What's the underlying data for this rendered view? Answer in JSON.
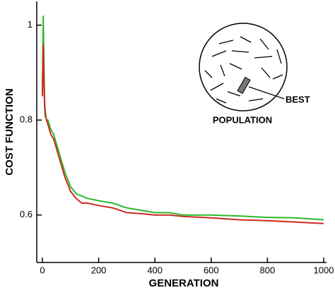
{
  "chart_data": {
    "type": "line",
    "x_label": "GENERATION",
    "y_label": "COST FUNCTION",
    "x": [
      0,
      3,
      5,
      8,
      10,
      15,
      20,
      30,
      40,
      50,
      60,
      70,
      80,
      100,
      120,
      140,
      160,
      200,
      250,
      300,
      350,
      400,
      450,
      500,
      600,
      700,
      800,
      900,
      1000
    ],
    "series": [
      {
        "name": "green",
        "color": "#2db82d",
        "values": [
          0.86,
          1.02,
          0.93,
          0.84,
          0.82,
          0.8,
          0.8,
          0.78,
          0.77,
          0.75,
          0.73,
          0.71,
          0.69,
          0.66,
          0.645,
          0.64,
          0.635,
          0.63,
          0.625,
          0.615,
          0.61,
          0.605,
          0.605,
          0.6,
          0.6,
          0.598,
          0.595,
          0.594,
          0.59
        ]
      },
      {
        "name": "red",
        "color": "#cc2a1e",
        "values": [
          0.85,
          0.96,
          0.9,
          0.83,
          0.81,
          0.8,
          0.79,
          0.77,
          0.76,
          0.74,
          0.72,
          0.7,
          0.68,
          0.65,
          0.635,
          0.625,
          0.625,
          0.62,
          0.615,
          0.605,
          0.603,
          0.6,
          0.6,
          0.597,
          0.594,
          0.59,
          0.588,
          0.585,
          0.582
        ]
      }
    ],
    "xlim": [
      -20,
      1010
    ],
    "xticks": [
      0,
      200,
      400,
      600,
      800,
      1000
    ],
    "ylim": [
      0.5,
      1.05
    ],
    "yticks": [
      0.6,
      0.8,
      1
    ],
    "grid": false,
    "annotations": [
      "BEST",
      "POPULATION"
    ]
  }
}
